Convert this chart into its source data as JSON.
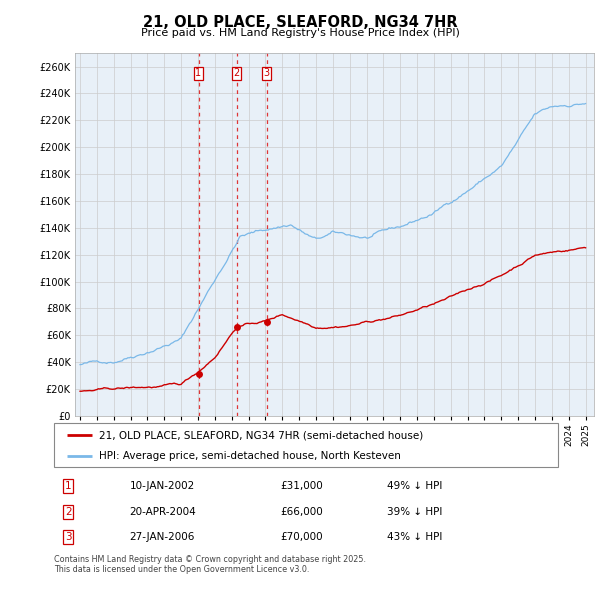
{
  "title": "21, OLD PLACE, SLEAFORD, NG34 7HR",
  "subtitle": "Price paid vs. HM Land Registry's House Price Index (HPI)",
  "ylim": [
    0,
    270000
  ],
  "yticks": [
    0,
    20000,
    40000,
    60000,
    80000,
    100000,
    120000,
    140000,
    160000,
    180000,
    200000,
    220000,
    240000,
    260000
  ],
  "hpi_color": "#7ab8e8",
  "price_color": "#cc0000",
  "grid_color": "#cccccc",
  "plot_bg_color": "#e8f0f8",
  "background_color": "#ffffff",
  "vline_color": "#dd2222",
  "sale_dates": [
    2002.03,
    2004.3,
    2006.07
  ],
  "sale_prices": [
    31000,
    66000,
    70000
  ],
  "sale_labels": [
    "1",
    "2",
    "3"
  ],
  "legend_entries": [
    {
      "label": "21, OLD PLACE, SLEAFORD, NG34 7HR (semi-detached house)",
      "color": "#cc0000"
    },
    {
      "label": "HPI: Average price, semi-detached house, North Kesteven",
      "color": "#7ab8e8"
    }
  ],
  "table_rows": [
    {
      "num": "1",
      "date": "10-JAN-2002",
      "price": "£31,000",
      "pct": "49% ↓ HPI"
    },
    {
      "num": "2",
      "date": "20-APR-2004",
      "price": "£66,000",
      "pct": "39% ↓ HPI"
    },
    {
      "num": "3",
      "date": "27-JAN-2006",
      "price": "£70,000",
      "pct": "43% ↓ HPI"
    }
  ],
  "footnote": "Contains HM Land Registry data © Crown copyright and database right 2025.\nThis data is licensed under the Open Government Licence v3.0.",
  "x_start_year": 1995,
  "x_end_year": 2025
}
